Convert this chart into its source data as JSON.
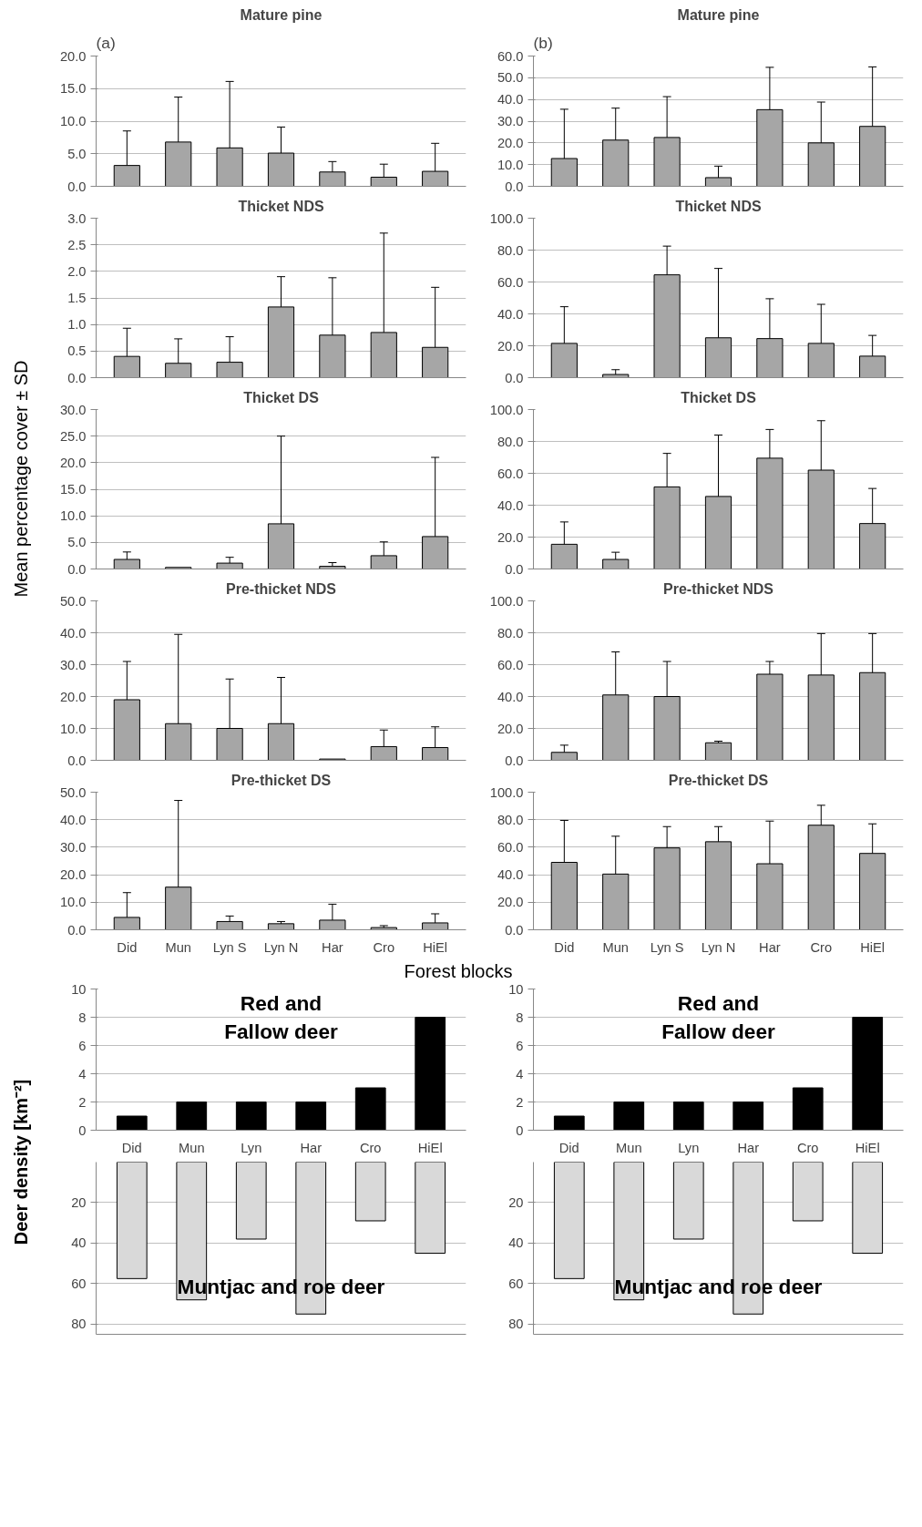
{
  "chart_data": [
    {
      "type": "bar",
      "title": "Mature pine",
      "annotations": [
        "(a)"
      ],
      "categories": [
        null,
        null,
        null,
        null,
        null,
        null,
        null
      ],
      "values": [
        3.2,
        6.8,
        5.9,
        5.1,
        2.2,
        1.4,
        2.3
      ],
      "errors": [
        [
          3.2,
          8.5
        ],
        [
          6.8,
          13.7
        ],
        [
          5.9,
          16.1
        ],
        [
          5.1,
          9.1
        ],
        [
          2.2,
          3.8
        ],
        [
          1.4,
          3.4
        ],
        [
          2.3,
          6.6
        ]
      ],
      "color": "#a6a6a6",
      "ylim": [
        0,
        20
      ],
      "yticks": [
        {
          "value": 0,
          "label": "0.0"
        },
        {
          "value": 5,
          "label": "5.0"
        },
        {
          "value": 10,
          "label": "10.0"
        },
        {
          "value": 15,
          "label": "15.0"
        },
        {
          "value": 20,
          "label": "20.0"
        }
      ],
      "grid": "y",
      "tick_labels": "y"
    },
    {
      "type": "bar",
      "title": "Mature pine",
      "annotations": [
        "(b)"
      ],
      "categories": [
        null,
        null,
        null,
        null,
        null,
        null,
        null
      ],
      "values": [
        12.8,
        21.3,
        22.5,
        4.0,
        35.3,
        20.0,
        27.6
      ],
      "errors": [
        [
          12.8,
          35.5
        ],
        [
          21.3,
          36
        ],
        [
          22.5,
          41.3
        ],
        [
          4.0,
          9.3
        ],
        [
          35.3,
          54.8
        ],
        [
          20.0,
          38.8
        ],
        [
          27.6,
          55
        ]
      ],
      "color": "#a6a6a6",
      "ylim": [
        0,
        60
      ],
      "yticks": [
        {
          "value": 0,
          "label": "0.0"
        },
        {
          "value": 10,
          "label": "10.0"
        },
        {
          "value": 20,
          "label": "20.0"
        },
        {
          "value": 30,
          "label": "30.0"
        },
        {
          "value": 40,
          "label": "40.0"
        },
        {
          "value": 50,
          "label": "50.0"
        },
        {
          "value": 60,
          "label": "60.0"
        }
      ],
      "grid": "y",
      "tick_labels": "y"
    },
    {
      "type": "bar",
      "title": "Thicket NDS",
      "categories": [
        null,
        null,
        null,
        null,
        null,
        null,
        null
      ],
      "values": [
        0.4,
        0.27,
        0.29,
        1.33,
        0.8,
        0.85,
        0.57
      ],
      "errors": [
        [
          0.4,
          0.93
        ],
        [
          0.27,
          0.73
        ],
        [
          0.29,
          0.77
        ],
        [
          1.33,
          1.9
        ],
        [
          0.8,
          1.88
        ],
        [
          0.85,
          2.72
        ],
        [
          0.57,
          1.7
        ]
      ],
      "color": "#a6a6a6",
      "ylim": [
        0,
        3
      ],
      "yticks": [
        {
          "value": 0,
          "label": "0.0"
        },
        {
          "value": 0.5,
          "label": "0.5"
        },
        {
          "value": 1,
          "label": "1.0"
        },
        {
          "value": 1.5,
          "label": "1.5"
        },
        {
          "value": 2,
          "label": "2.0"
        },
        {
          "value": 2.5,
          "label": "2.5"
        },
        {
          "value": 3,
          "label": "3.0"
        }
      ],
      "grid": "y",
      "tick_labels": "y"
    },
    {
      "type": "bar",
      "title": "Thicket NDS",
      "categories": [
        null,
        null,
        null,
        null,
        null,
        null,
        null
      ],
      "values": [
        21.5,
        2,
        64.5,
        25,
        24.5,
        21.5,
        13.5
      ],
      "errors": [
        [
          21.5,
          44.5
        ],
        [
          2,
          5
        ],
        [
          64.5,
          82.5
        ],
        [
          25,
          68.5
        ],
        [
          24.5,
          49.5
        ],
        [
          21.5,
          46
        ],
        [
          13.5,
          26.5
        ]
      ],
      "color": "#a6a6a6",
      "ylim": [
        0,
        100
      ],
      "yticks": [
        {
          "value": 0,
          "label": "0.0"
        },
        {
          "value": 20,
          "label": "20.0"
        },
        {
          "value": 40,
          "label": "40.0"
        },
        {
          "value": 60,
          "label": "60.0"
        },
        {
          "value": 80,
          "label": "80.0"
        },
        {
          "value": 100,
          "label": "100.0"
        }
      ],
      "grid": "y",
      "tick_labels": "y"
    },
    {
      "type": "bar",
      "title": "Thicket DS",
      "ylabel": "Mean percentage cover ± SD",
      "categories": [
        null,
        null,
        null,
        null,
        null,
        null,
        null
      ],
      "values": [
        1.8,
        0.3,
        1.1,
        8.5,
        0.5,
        2.5,
        6.1
      ],
      "errors": [
        [
          1.8,
          3.2
        ],
        null,
        [
          1.1,
          2.2
        ],
        [
          8.5,
          25
        ],
        [
          0.5,
          1.2
        ],
        [
          2.5,
          5.1
        ],
        [
          6.1,
          21
        ]
      ],
      "color": "#a6a6a6",
      "ylim": [
        0,
        30
      ],
      "yticks": [
        {
          "value": 0,
          "label": "0.0"
        },
        {
          "value": 5,
          "label": "5.0"
        },
        {
          "value": 10,
          "label": "10.0"
        },
        {
          "value": 15,
          "label": "15.0"
        },
        {
          "value": 20,
          "label": "20.0"
        },
        {
          "value": 25,
          "label": "25.0"
        },
        {
          "value": 30,
          "label": "30.0"
        }
      ],
      "grid": "y",
      "tick_labels": "y"
    },
    {
      "type": "bar",
      "title": "Thicket DS",
      "categories": [
        null,
        null,
        null,
        null,
        null,
        null,
        null
      ],
      "values": [
        15.5,
        6,
        51.5,
        45.5,
        69.5,
        62,
        28.5
      ],
      "errors": [
        [
          15.5,
          29.5
        ],
        [
          6,
          10.5
        ],
        [
          51.5,
          72.5
        ],
        [
          45.5,
          84
        ],
        [
          69.5,
          87.5
        ],
        [
          62,
          93
        ],
        [
          28.5,
          50.5
        ]
      ],
      "color": "#a6a6a6",
      "ylim": [
        0,
        100
      ],
      "yticks": [
        {
          "value": 0,
          "label": "0.0"
        },
        {
          "value": 20,
          "label": "20.0"
        },
        {
          "value": 40,
          "label": "40.0"
        },
        {
          "value": 60,
          "label": "60.0"
        },
        {
          "value": 80,
          "label": "80.0"
        },
        {
          "value": 100,
          "label": "100.0"
        }
      ],
      "grid": "y",
      "tick_labels": "y"
    },
    {
      "type": "bar",
      "title": "Pre-thicket NDS",
      "categories": [
        null,
        null,
        null,
        null,
        null,
        null,
        null
      ],
      "values": [
        19,
        11.5,
        10,
        11.5,
        0.4,
        4.3,
        4
      ],
      "errors": [
        [
          19,
          31
        ],
        [
          11.5,
          39.5
        ],
        [
          10,
          25.5
        ],
        [
          11.5,
          26
        ],
        null,
        [
          4.3,
          9.5
        ],
        [
          4,
          10.5
        ]
      ],
      "color": "#a6a6a6",
      "ylim": [
        0,
        50
      ],
      "yticks": [
        {
          "value": 0,
          "label": "0.0"
        },
        {
          "value": 10,
          "label": "10.0"
        },
        {
          "value": 20,
          "label": "20.0"
        },
        {
          "value": 30,
          "label": "30.0"
        },
        {
          "value": 40,
          "label": "40.0"
        },
        {
          "value": 50,
          "label": "50.0"
        }
      ],
      "grid": "y",
      "tick_labels": "y"
    },
    {
      "type": "bar",
      "title": "Pre-thicket NDS",
      "categories": [
        null,
        null,
        null,
        null,
        null,
        null,
        null
      ],
      "values": [
        5,
        41,
        40,
        11,
        54,
        53.5,
        55
      ],
      "errors": [
        [
          5,
          9.5
        ],
        [
          41,
          68
        ],
        [
          40,
          62
        ],
        [
          11,
          12
        ],
        [
          54,
          62
        ],
        [
          53.5,
          79.5
        ],
        [
          55,
          79.5
        ]
      ],
      "color": "#a6a6a6",
      "ylim": [
        0,
        100
      ],
      "yticks": [
        {
          "value": 0,
          "label": "0.0"
        },
        {
          "value": 20,
          "label": "20.0"
        },
        {
          "value": 40,
          "label": "40.0"
        },
        {
          "value": 60,
          "label": "60.0"
        },
        {
          "value": 80,
          "label": "80.0"
        },
        {
          "value": 100,
          "label": "100.0"
        }
      ],
      "grid": "y",
      "tick_labels": "y"
    },
    {
      "type": "bar",
      "title": "Pre-thicket DS",
      "xlabel": "Forest blocks",
      "categories": [
        "Did",
        "Mun",
        "Lyn S",
        "Lyn N",
        "Har",
        "Cro",
        "HiEl"
      ],
      "values": [
        4.5,
        15.5,
        3,
        2.2,
        3.5,
        0.8,
        2.5
      ],
      "errors": [
        [
          4.5,
          13.5
        ],
        [
          15.5,
          47
        ],
        [
          3,
          5
        ],
        [
          2.2,
          3
        ],
        [
          3.5,
          9.3
        ],
        [
          0.8,
          1.5
        ],
        [
          2.5,
          5.8
        ]
      ],
      "color": "#a6a6a6",
      "ylim": [
        0,
        50
      ],
      "yticks": [
        {
          "value": 0,
          "label": "0.0"
        },
        {
          "value": 10,
          "label": "10.0"
        },
        {
          "value": 20,
          "label": "20.0"
        },
        {
          "value": 30,
          "label": "30.0"
        },
        {
          "value": 40,
          "label": "40.0"
        },
        {
          "value": 50,
          "label": "50.0"
        }
      ],
      "grid": "y"
    },
    {
      "type": "bar",
      "title": "Pre-thicket DS",
      "categories": [
        "Did",
        "Mun",
        "Lyn S",
        "Lyn N",
        "Har",
        "Cro",
        "HiEl"
      ],
      "values": [
        49,
        40.5,
        59.5,
        64,
        48,
        76,
        55.5
      ],
      "errors": [
        [
          49,
          79.5
        ],
        [
          40.5,
          68
        ],
        [
          59.5,
          75
        ],
        [
          64,
          75
        ],
        [
          48,
          79
        ],
        [
          76,
          90.5
        ],
        [
          55.5,
          77
        ]
      ],
      "color": "#a6a6a6",
      "ylim": [
        0,
        100
      ],
      "yticks": [
        {
          "value": 0,
          "label": "0.0"
        },
        {
          "value": 20,
          "label": "20.0"
        },
        {
          "value": 40,
          "label": "40.0"
        },
        {
          "value": 60,
          "label": "60.0"
        },
        {
          "value": 80,
          "label": "80.0"
        },
        {
          "value": 100,
          "label": "100.0"
        }
      ],
      "grid": "y"
    },
    {
      "type": "bar",
      "annotations": [
        "Red and\nFallow deer"
      ],
      "categories": [
        "Did",
        "Mun",
        "Lyn",
        "Har",
        "Cro",
        "HiEl"
      ],
      "values": [
        1,
        2,
        2,
        2,
        3,
        8
      ],
      "color": "#000000",
      "ylim": [
        0,
        10
      ],
      "yticks": [
        0,
        2,
        4,
        6,
        8,
        10
      ],
      "grid": "y"
    },
    {
      "type": "bar",
      "annotations": [
        "Red and\nFallow deer"
      ],
      "categories": [
        "Did",
        "Mun",
        "Lyn",
        "Har",
        "Cro",
        "HiEl"
      ],
      "values": [
        1,
        2,
        2,
        2,
        3,
        8
      ],
      "color": "#000000",
      "ylim": [
        0,
        10
      ],
      "yticks": [
        0,
        2,
        4,
        6,
        8,
        10
      ],
      "grid": "y"
    },
    {
      "type": "bar",
      "ylabel": "Deer density [km⁻²]",
      "annotations": [
        "Muntjac and roe deer"
      ],
      "categories": [
        null,
        null,
        null,
        null,
        null,
        null
      ],
      "values": [
        57.5,
        68,
        38,
        75,
        29,
        45
      ],
      "color": "#d9d9d9",
      "ylim": [
        85,
        0
      ],
      "yticks": [
        20,
        40,
        60,
        80
      ],
      "grid": "y",
      "tick_labels": "y"
    },
    {
      "type": "bar",
      "annotations": [
        "Muntjac and roe deer"
      ],
      "categories": [
        null,
        null,
        null,
        null,
        null,
        null
      ],
      "values": [
        57.5,
        68,
        38,
        75,
        29,
        45
      ],
      "color": "#d9d9d9",
      "ylim": [
        85,
        0
      ],
      "yticks": [
        20,
        40,
        60,
        80
      ],
      "grid": "y",
      "tick_labels": "y"
    }
  ]
}
